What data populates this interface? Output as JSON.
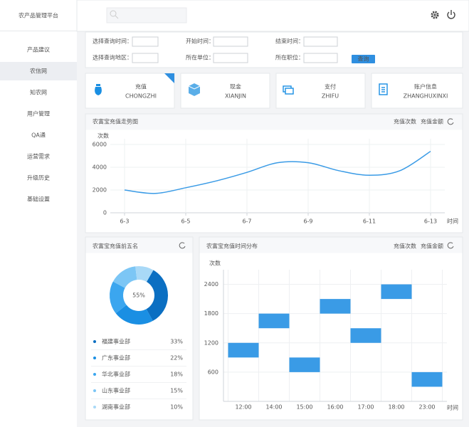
{
  "app_title": "农产品管理平台",
  "sidebar": {
    "items": [
      "产品建议",
      "农信网",
      "知农网",
      "用户管理",
      "QA通",
      "运营需求",
      "升级历史",
      "基础设置"
    ],
    "active": 1
  },
  "filters": {
    "labels": [
      "选择查询时间：",
      "开始时间：",
      "结束时间：",
      "选择查询地区：",
      "所在单位：",
      "所在职位："
    ],
    "button": "查询"
  },
  "cards": [
    {
      "title": "充值",
      "subtitle": "CHONGZHI"
    },
    {
      "title": "现金",
      "subtitle": "XIANJIN"
    },
    {
      "title": "支付",
      "subtitle": "ZHIFU"
    },
    {
      "title": "账户信息",
      "subtitle": "ZHANGHUXINXI"
    }
  ],
  "chart_data": [
    {
      "type": "line",
      "title": "农富宝充值走势图",
      "tabs": [
        "充值次数",
        "充值金额"
      ],
      "y_label": "次数",
      "x_label": "时间",
      "categories": [
        "6-3",
        null,
        "6-5",
        null,
        "6-7",
        null,
        "6-9",
        null,
        "6-11",
        null,
        "6-13"
      ],
      "values": [
        2000,
        1700,
        2200,
        2800,
        3550,
        4400,
        4400,
        3700,
        3300,
        3700,
        5400
      ],
      "color": "#3a9be6",
      "ylim": [
        0,
        6000
      ],
      "yticks": [
        0,
        2000,
        4000,
        6000
      ],
      "grid": true
    },
    {
      "type": "donut",
      "title": "农富宝充值前五名",
      "center_label": "55%",
      "categories": [
        "福建事业部",
        "广东事业部",
        "华北事业部",
        "山东事业部",
        "湖南事业部"
      ],
      "values": [
        33,
        22,
        18,
        15,
        10
      ],
      "value_labels": [
        "33%",
        "22%",
        "18%",
        "15%",
        "10%"
      ],
      "colors": [
        "#0b6fc2",
        "#1a8fe3",
        "#3ba6ef",
        "#7cc6f5",
        "#a9d9f7"
      ]
    },
    {
      "type": "range-bar",
      "title": "农富宝充值时间分布",
      "tabs": [
        "充值次数",
        "充值金额"
      ],
      "y_label": "次数",
      "x_label": "时间",
      "categories": [
        "12:00",
        "14:00",
        "15:00",
        "16:00",
        "17:00",
        "18:00",
        "23:00"
      ],
      "low": [
        900,
        1500,
        600,
        1800,
        1200,
        2100,
        300
      ],
      "high": [
        1200,
        1800,
        900,
        2100,
        1500,
        2400,
        600
      ],
      "color": "#3a9be6",
      "ylim": [
        0,
        2700
      ],
      "yticks": [
        600,
        1200,
        1800,
        2400
      ],
      "grid": true
    }
  ]
}
